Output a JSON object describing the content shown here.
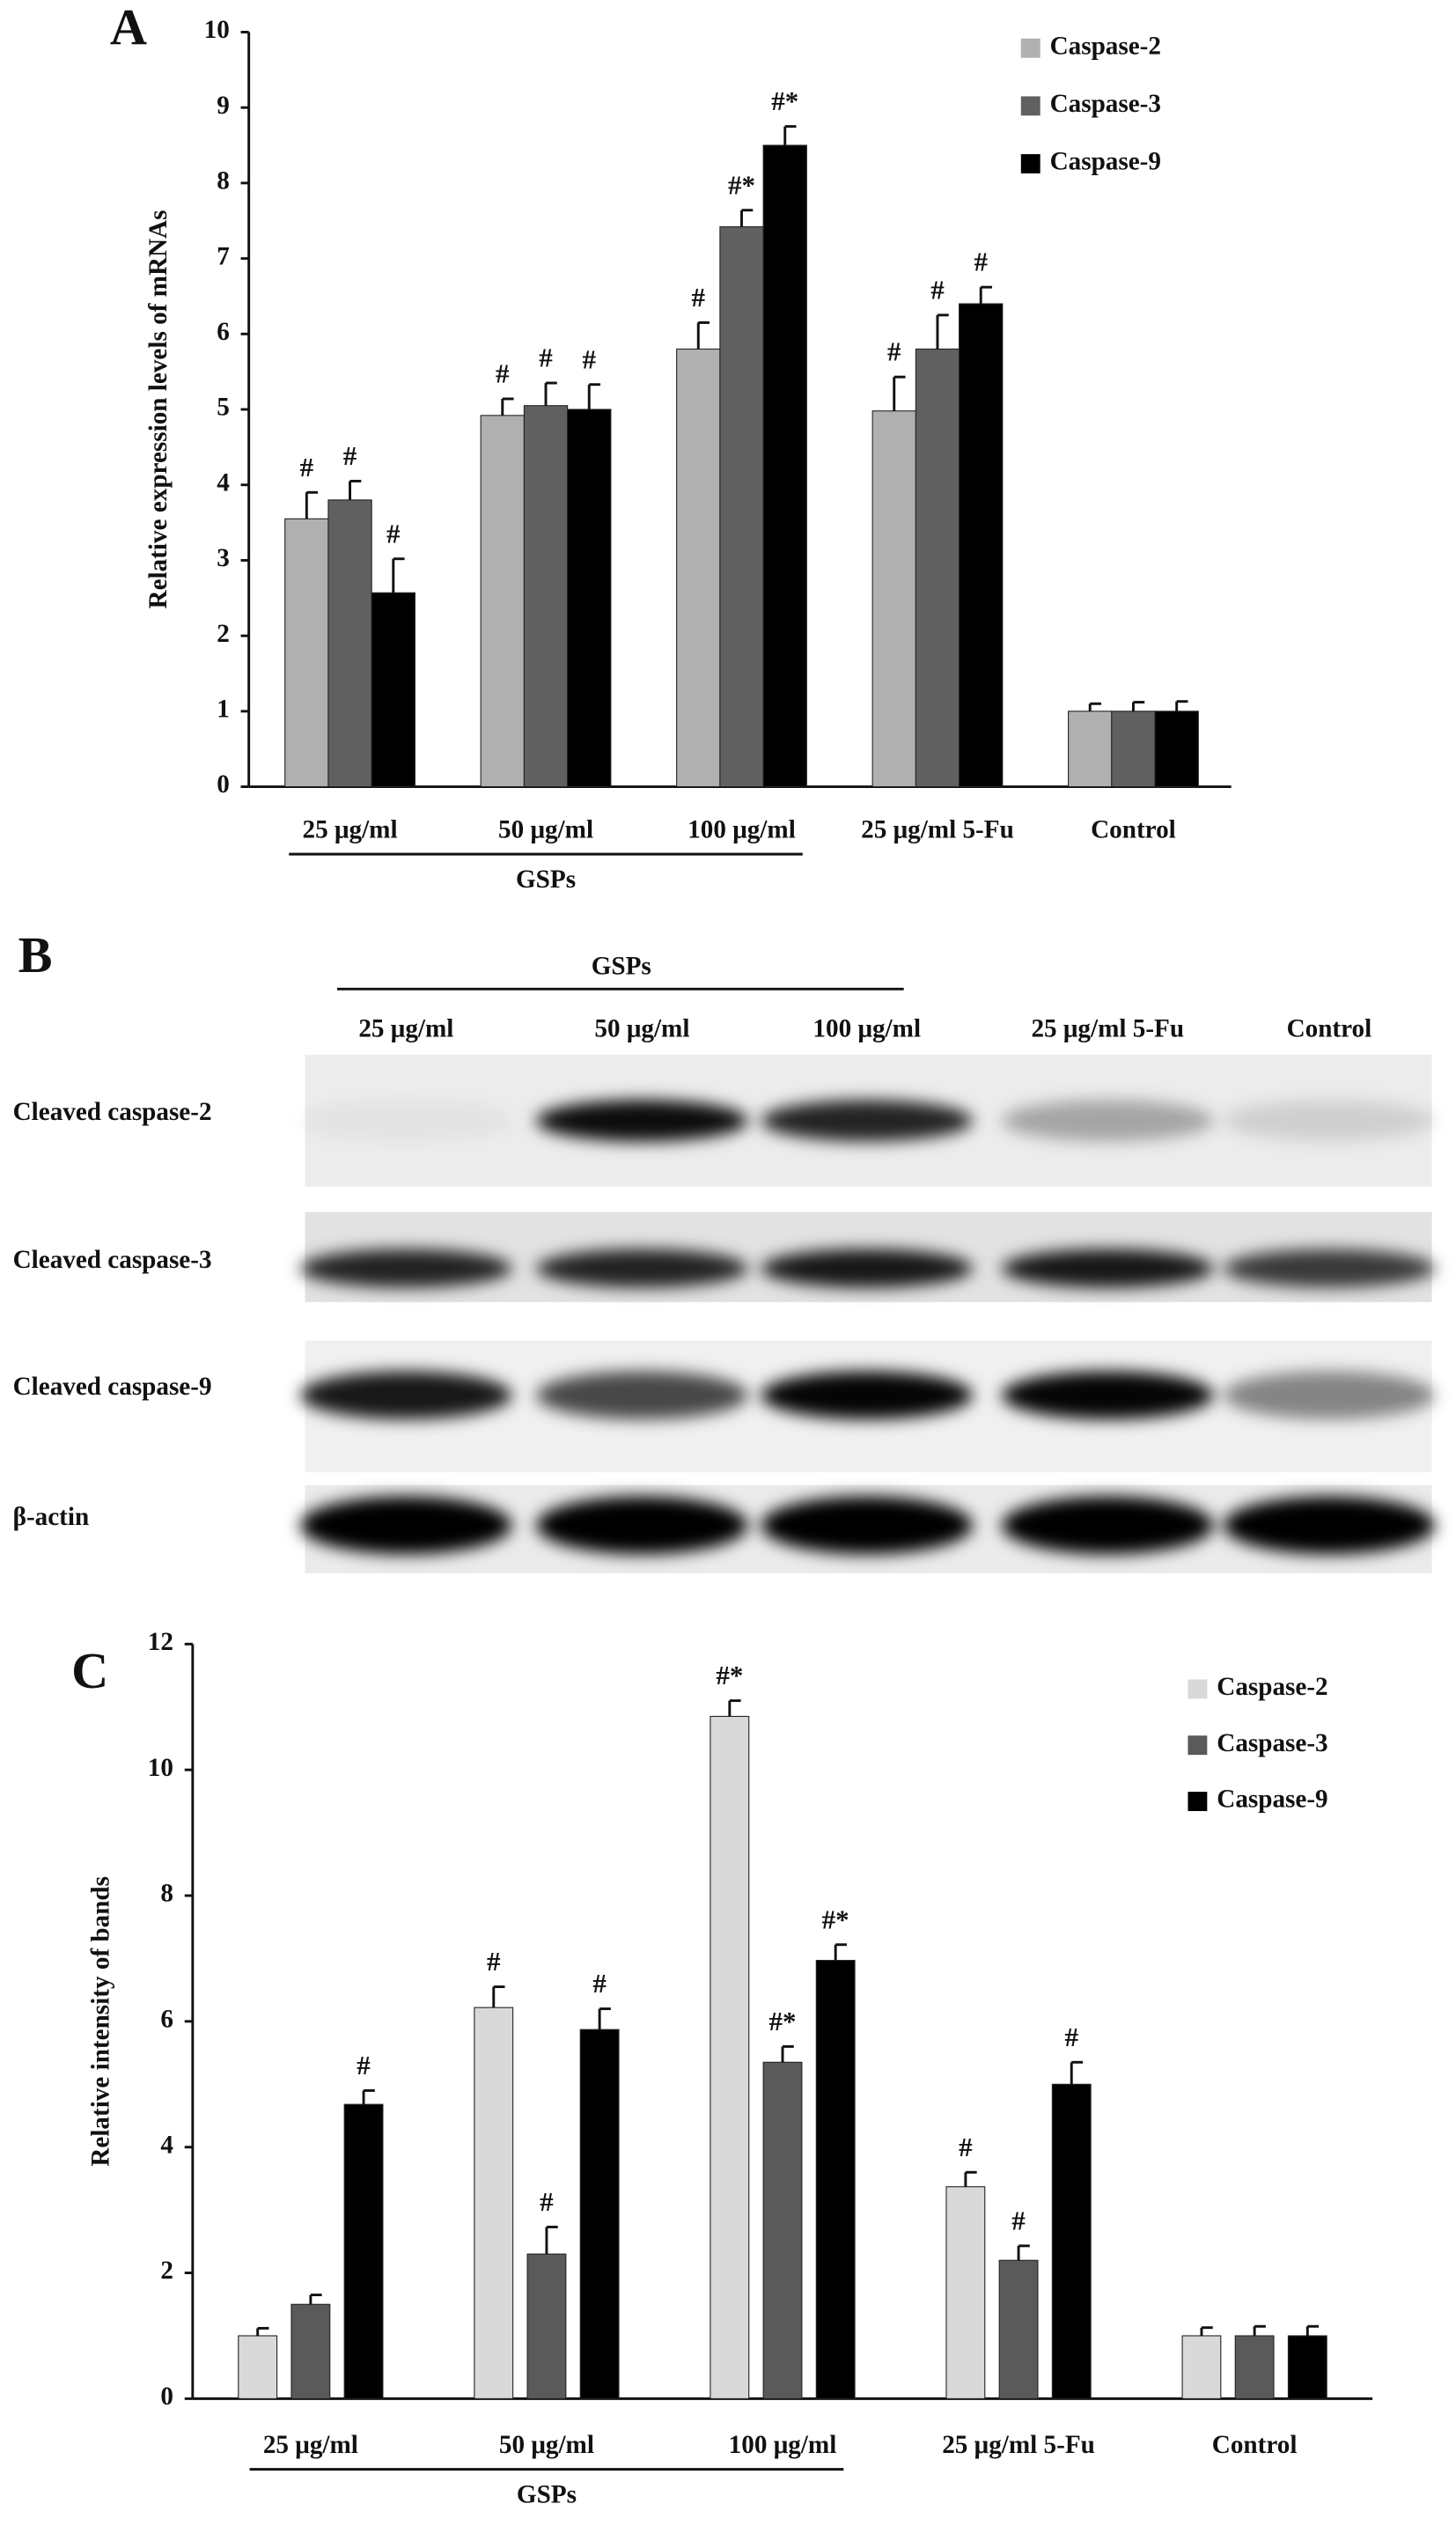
{
  "chart_data": [
    {
      "type": "bar",
      "panel": "A",
      "ylabel": "Relative expression levels of mRNAs",
      "categories": [
        "25 μg/ml",
        "50 μg/ml",
        "100 μg/ml",
        "25 μg/ml 5-Fu",
        "Control"
      ],
      "group_label": "GSPs",
      "series": [
        {
          "name": "Caspase-2",
          "color": "#b0b0b0",
          "values": [
            3.55,
            4.92,
            5.8,
            4.98,
            1.0
          ],
          "errors": [
            0.35,
            0.22,
            0.35,
            0.45,
            0.1
          ],
          "annotations": [
            "#",
            "#",
            "#",
            "#",
            null
          ]
        },
        {
          "name": "Caspase-3",
          "color": "#606060",
          "values": [
            3.8,
            5.05,
            7.42,
            5.8,
            1.0
          ],
          "errors": [
            0.25,
            0.3,
            0.22,
            0.45,
            0.12
          ],
          "annotations": [
            "#",
            "#",
            "#*",
            "#",
            null
          ]
        },
        {
          "name": "Caspase-9",
          "color": "#000000",
          "values": [
            2.57,
            5.0,
            8.5,
            6.4,
            1.0
          ],
          "errors": [
            0.45,
            0.33,
            0.25,
            0.22,
            0.13
          ],
          "annotations": [
            "#",
            "#",
            "#*",
            "#",
            null
          ]
        }
      ],
      "ylim": [
        0,
        10
      ],
      "yticks": [
        0,
        1,
        2,
        3,
        4,
        5,
        6,
        7,
        8,
        9,
        10
      ],
      "legend": "upper right"
    },
    {
      "type": "bar",
      "panel": "C",
      "ylabel": "Relative intensity of bands",
      "categories": [
        "25 μg/ml",
        "50 μg/ml",
        "100 μg/ml",
        "25 μg/ml 5-Fu",
        "Control"
      ],
      "group_label": "GSPs",
      "series": [
        {
          "name": "Caspase-2",
          "color": "#d9d9d9",
          "values": [
            1.0,
            6.22,
            10.85,
            3.37,
            1.0
          ],
          "errors": [
            0.12,
            0.33,
            0.25,
            0.23,
            0.13
          ],
          "annotations": [
            null,
            "#",
            "#*",
            "#",
            null
          ]
        },
        {
          "name": "Caspase-3",
          "color": "#5a5a5a",
          "values": [
            1.5,
            2.3,
            5.35,
            2.2,
            1.0
          ],
          "errors": [
            0.15,
            0.43,
            0.25,
            0.23,
            0.15
          ],
          "annotations": [
            null,
            "#",
            "#*",
            "#",
            null
          ]
        },
        {
          "name": "Caspase-9",
          "color": "#000000",
          "values": [
            4.68,
            5.87,
            6.97,
            5.0,
            1.0
          ],
          "errors": [
            0.22,
            0.33,
            0.25,
            0.35,
            0.15
          ],
          "annotations": [
            "#",
            "#",
            "#*",
            "#",
            null
          ]
        }
      ],
      "ylim": [
        0,
        12
      ],
      "yticks": [
        0,
        2,
        4,
        6,
        8,
        10,
        12
      ],
      "legend": "upper right"
    }
  ],
  "blot": {
    "panel": "B",
    "group_label": "GSPs",
    "lanes": [
      "25 μg/ml",
      "50 μg/ml",
      "100 μg/ml",
      "25 μg/ml 5-Fu",
      "Control"
    ],
    "rows": [
      "Cleaved caspase-2",
      "Cleaved caspase-3",
      "Cleaved caspase-9",
      "β-actin"
    ]
  }
}
